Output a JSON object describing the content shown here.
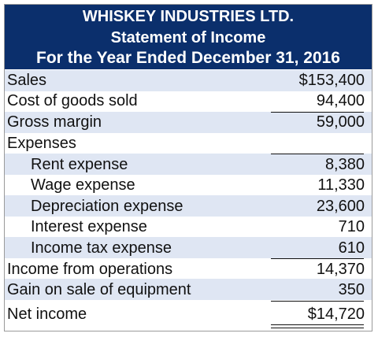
{
  "statement": {
    "company": "WHISKEY INDUSTRIES LTD.",
    "title": "Statement of Income",
    "period": "For the Year Ended December 31, 2016"
  },
  "lines": {
    "sales": {
      "label": "Sales",
      "amount": "$153,400"
    },
    "cogs": {
      "label": "Cost of goods sold",
      "amount": "94,400"
    },
    "gross_margin": {
      "label": "Gross margin",
      "amount": "59,000"
    },
    "expenses_heading": {
      "label": "Expenses"
    },
    "rent": {
      "label": "Rent expense",
      "amount": "8,380"
    },
    "wage": {
      "label": "Wage expense",
      "amount": "11,330"
    },
    "depreciation": {
      "label": "Depreciation expense",
      "amount": "23,600"
    },
    "interest": {
      "label": "Interest expense",
      "amount": "710"
    },
    "income_tax": {
      "label": "Income tax expense",
      "amount": "610"
    },
    "income_from_operations": {
      "label": "Income from operations",
      "amount": "14,370"
    },
    "gain_on_sale": {
      "label": "Gain on sale of equipment",
      "amount": "350"
    },
    "net_income": {
      "label": "Net income",
      "amount": "$14,720"
    }
  },
  "colors": {
    "header_background": "#0b2f6c",
    "header_text": "#ffffff",
    "row_shading": "#dfe6f3",
    "text": "#111111"
  }
}
